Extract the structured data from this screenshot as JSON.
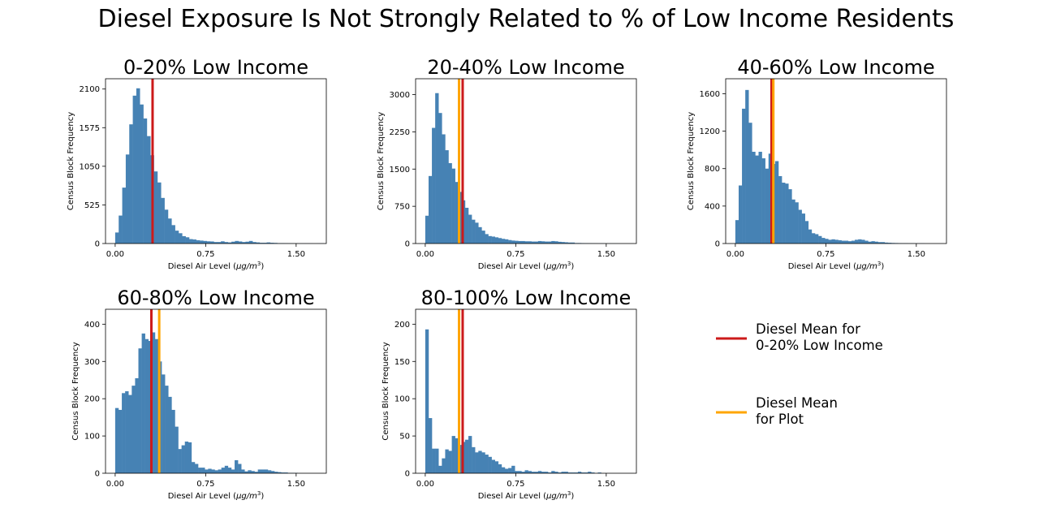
{
  "figure": {
    "title": "Diesel Exposure Is Not Strongly Related to % of Low Income Residents"
  },
  "chart_data": [
    {
      "type": "bar",
      "title": "0-20% Low Income",
      "xlabel": "Diesel Air Level",
      "xlabel_unit_base": "μg/m",
      "xlabel_unit_exp": "3",
      "ylabel": "Census Block Frequency",
      "xlim": [
        -0.08,
        1.75
      ],
      "ylim": [
        0,
        2240
      ],
      "xticks": [
        0.0,
        0.75,
        1.5
      ],
      "xtick_labels": [
        "0.00",
        "0.75",
        "1.50"
      ],
      "yticks": [
        0,
        525,
        1050,
        1575,
        2100
      ],
      "bin_start": 0.0,
      "bin_width": 0.0292,
      "bar_color": "#4682b4",
      "values": [
        150,
        380,
        760,
        1210,
        1620,
        2010,
        2110,
        1890,
        1700,
        1460,
        1200,
        980,
        830,
        620,
        460,
        340,
        250,
        175,
        140,
        100,
        85,
        60,
        55,
        45,
        40,
        35,
        30,
        28,
        20,
        20,
        30,
        20,
        15,
        25,
        35,
        28,
        20,
        25,
        35,
        20,
        15,
        10,
        10,
        15,
        10,
        8,
        5,
        5,
        4,
        3,
        2,
        2,
        1,
        1,
        1,
        1,
        0,
        1,
        1,
        1
      ],
      "vlines": [
        {
          "x": 0.31,
          "color": "#cc1a1a"
        }
      ]
    },
    {
      "type": "bar",
      "title": "20-40% Low Income",
      "xlabel": "Diesel Air Level",
      "xlabel_unit_base": "μg/m",
      "xlabel_unit_exp": "3",
      "ylabel": "Census Block Frequency",
      "xlim": [
        -0.08,
        1.75
      ],
      "ylim": [
        0,
        3320
      ],
      "xticks": [
        0.0,
        0.75,
        1.5
      ],
      "xtick_labels": [
        "0.00",
        "0.75",
        "1.50"
      ],
      "yticks": [
        0,
        750,
        1500,
        2250,
        3000
      ],
      "bin_start": 0.0,
      "bin_width": 0.0275,
      "bar_color": "#4682b4",
      "values": [
        560,
        1360,
        2330,
        3030,
        2630,
        2200,
        1880,
        1620,
        1510,
        1240,
        1040,
        870,
        720,
        580,
        480,
        420,
        330,
        260,
        190,
        150,
        140,
        125,
        110,
        95,
        85,
        70,
        60,
        55,
        50,
        50,
        45,
        45,
        40,
        40,
        50,
        45,
        40,
        40,
        50,
        45,
        35,
        30,
        25,
        20,
        20,
        10,
        10,
        8,
        6,
        5,
        4,
        3,
        2,
        2,
        1,
        1,
        1,
        1,
        0,
        0
      ],
      "vlines": [
        {
          "x": 0.28,
          "color": "#ffa500"
        },
        {
          "x": 0.31,
          "color": "#cc1a1a"
        }
      ]
    },
    {
      "type": "bar",
      "title": "40-60% Low Income",
      "xlabel": "Diesel Air Level",
      "xlabel_unit_base": "μg/m",
      "xlabel_unit_exp": "3",
      "ylabel": "Census Block Frequency",
      "xlim": [
        -0.08,
        1.75
      ],
      "ylim": [
        0,
        1760
      ],
      "xticks": [
        0.0,
        0.75,
        1.5
      ],
      "xtick_labels": [
        "0.00",
        "0.75",
        "1.50"
      ],
      "yticks": [
        0,
        400,
        800,
        1200,
        1600
      ],
      "bin_start": 0.0,
      "bin_width": 0.0275,
      "bar_color": "#4682b4",
      "values": [
        250,
        620,
        1440,
        1640,
        1290,
        980,
        940,
        980,
        910,
        800,
        960,
        850,
        880,
        720,
        650,
        640,
        580,
        470,
        440,
        360,
        320,
        240,
        150,
        110,
        100,
        80,
        60,
        50,
        40,
        45,
        40,
        35,
        30,
        30,
        25,
        30,
        40,
        45,
        40,
        30,
        20,
        25,
        20,
        15,
        15,
        10,
        8,
        6,
        5,
        4,
        3,
        3,
        2,
        2,
        1,
        1,
        1,
        0,
        0,
        0
      ],
      "vlines": [
        {
          "x": 0.3,
          "color": "#cc1a1a"
        },
        {
          "x": 0.315,
          "color": "#ffa500"
        }
      ]
    },
    {
      "type": "bar",
      "title": "60-80% Low Income",
      "xlabel": "Diesel Air Level",
      "xlabel_unit_base": "μg/m",
      "xlabel_unit_exp": "3",
      "ylabel": "Census Block Frequency",
      "xlim": [
        -0.08,
        1.75
      ],
      "ylim": [
        0,
        440
      ],
      "xticks": [
        0.0,
        0.75,
        1.5
      ],
      "xtick_labels": [
        "0.00",
        "0.75",
        "1.50"
      ],
      "yticks": [
        0,
        100,
        200,
        300,
        400
      ],
      "bin_start": 0.0,
      "bin_width": 0.0275,
      "bar_color": "#4682b4",
      "values": [
        175,
        170,
        215,
        220,
        210,
        235,
        255,
        335,
        375,
        360,
        355,
        378,
        360,
        300,
        265,
        235,
        205,
        170,
        125,
        65,
        75,
        85,
        83,
        30,
        25,
        15,
        15,
        10,
        12,
        10,
        8,
        10,
        15,
        20,
        15,
        10,
        35,
        25,
        10,
        5,
        8,
        6,
        4,
        10,
        10,
        10,
        8,
        6,
        4,
        3,
        2,
        2,
        1,
        1,
        1,
        0,
        0,
        0,
        0,
        0
      ],
      "vlines": [
        {
          "x": 0.3,
          "color": "#cc1a1a"
        },
        {
          "x": 0.365,
          "color": "#ffa500"
        }
      ]
    },
    {
      "type": "bar",
      "title": "80-100% Low Income",
      "xlabel": "Diesel Air Level",
      "xlabel_unit_base": "μg/m",
      "xlabel_unit_exp": "3",
      "ylabel": "Census Block Frequency",
      "xlim": [
        -0.08,
        1.75
      ],
      "ylim": [
        0,
        220
      ],
      "xticks": [
        0.0,
        0.75,
        1.5
      ],
      "xtick_labels": [
        "0.00",
        "0.75",
        "1.50"
      ],
      "yticks": [
        0,
        50,
        100,
        150,
        200
      ],
      "bin_start": 0.0,
      "bin_width": 0.0275,
      "bar_color": "#4682b4",
      "values": [
        193,
        74,
        33,
        33,
        10,
        20,
        32,
        30,
        50,
        47,
        38,
        42,
        45,
        50,
        35,
        28,
        30,
        28,
        25,
        22,
        18,
        16,
        12,
        8,
        6,
        7,
        10,
        3,
        3,
        2,
        4,
        3,
        2,
        2,
        3,
        2,
        2,
        1,
        3,
        2,
        1,
        2,
        2,
        1,
        1,
        1,
        2,
        1,
        1,
        2,
        1,
        0,
        1,
        0,
        0,
        0,
        0,
        0,
        0,
        0
      ],
      "vlines": [
        {
          "x": 0.28,
          "color": "#ffa500"
        },
        {
          "x": 0.31,
          "color": "#cc1a1a"
        }
      ]
    }
  ],
  "legend": {
    "items": [
      {
        "lines": [
          "Diesel Mean for",
          "0-20% Low Income"
        ],
        "color": "#cc1a1a"
      },
      {
        "lines": [
          "Diesel Mean",
          "for Plot"
        ],
        "color": "#ffa500"
      }
    ]
  }
}
